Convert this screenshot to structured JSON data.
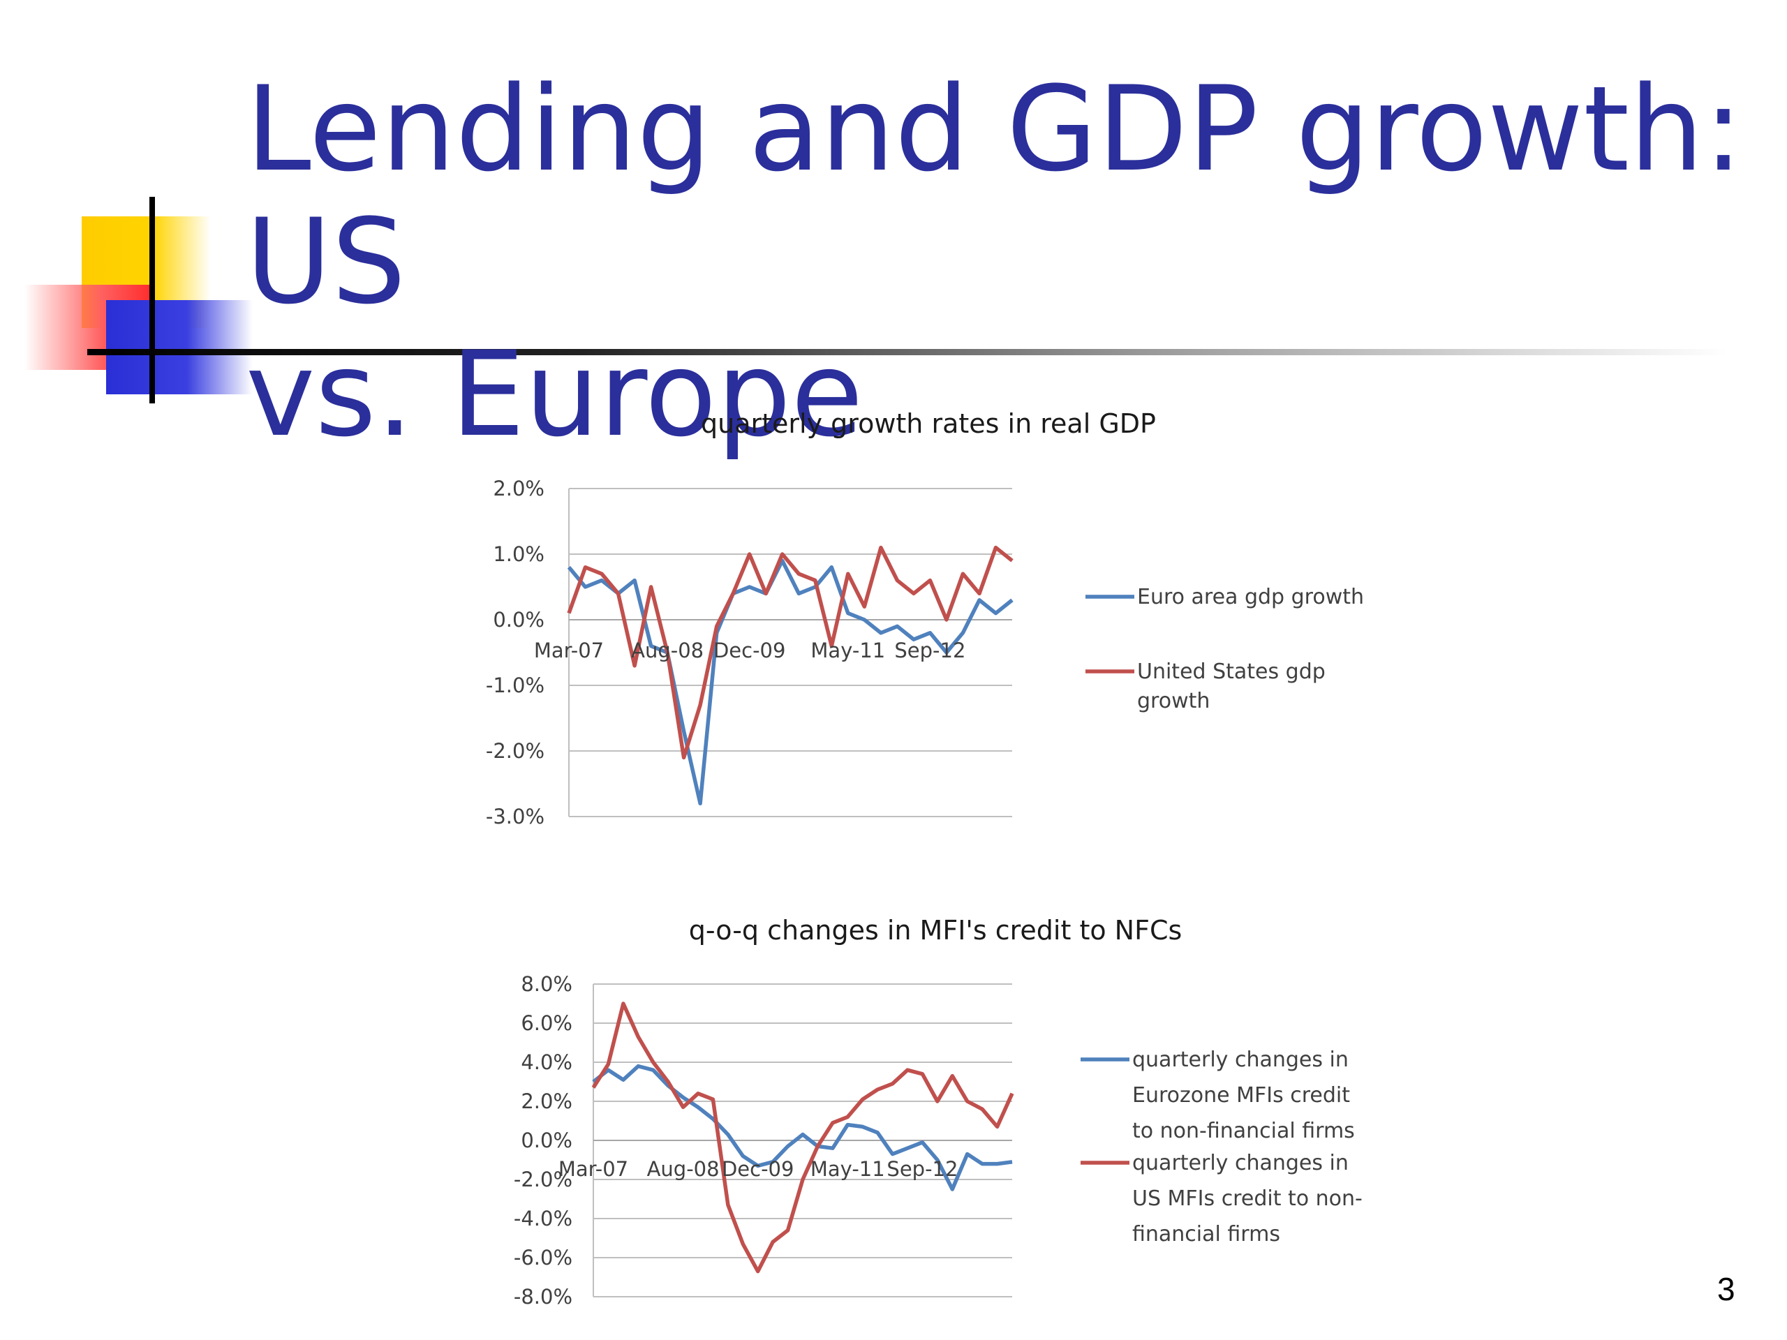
{
  "slide": {
    "title_line1": "Lending and GDP growth: US",
    "title_line2": "vs. Europe",
    "page_number": "3"
  },
  "chart_data": [
    {
      "type": "line",
      "title": "quarterly growth rates in real GDP",
      "ylim": [
        -3.0,
        2.0
      ],
      "yticks": [
        "2.0%",
        "1.0%",
        "0.0%",
        "-1.0%",
        "-2.0%",
        "-3.0%"
      ],
      "ytick_values": [
        2.0,
        1.0,
        0.0,
        -1.0,
        -2.0,
        -3.0
      ],
      "x_tick_labels": [
        "Mar-07",
        "Aug-08",
        "Dec-09",
        "May-11",
        "Sep-12"
      ],
      "x_tick_index": [
        0,
        6,
        11,
        17,
        22
      ],
      "grid": true,
      "legend_position": "right",
      "series": [
        {
          "name": "Euro area gdp growth",
          "color": "#4f81bd",
          "values": [
            0.8,
            0.5,
            0.6,
            0.4,
            0.6,
            -0.4,
            -0.5,
            -1.7,
            -2.8,
            -0.2,
            0.4,
            0.5,
            0.4,
            0.9,
            0.4,
            0.5,
            0.8,
            0.1,
            0.0,
            -0.2,
            -0.1,
            -0.3,
            -0.2,
            -0.5,
            -0.2,
            0.3,
            0.1,
            0.3
          ]
        },
        {
          "name": "United States gdp growth",
          "color": "#c0504d",
          "values": [
            0.1,
            0.8,
            0.7,
            0.4,
            -0.7,
            0.5,
            -0.5,
            -2.1,
            -1.3,
            -0.1,
            0.4,
            1.0,
            0.4,
            1.0,
            0.7,
            0.6,
            -0.4,
            0.7,
            0.2,
            1.1,
            0.6,
            0.4,
            0.6,
            0.0,
            0.7,
            0.4,
            1.1,
            0.9
          ]
        }
      ]
    },
    {
      "type": "line",
      "title": "q-o-q changes in MFI's credit to NFCs",
      "ylim": [
        -8.0,
        8.0
      ],
      "yticks": [
        "8.0%",
        "6.0%",
        "4.0%",
        "2.0%",
        "0.0%",
        "-2.0%",
        "-4.0%",
        "-6.0%",
        "-8.0%"
      ],
      "ytick_values": [
        8.0,
        6.0,
        4.0,
        2.0,
        0.0,
        -2.0,
        -4.0,
        -6.0,
        -8.0
      ],
      "x_tick_labels": [
        "Mar-07",
        "Aug-08",
        "Dec-09",
        "May-11",
        "Sep-12"
      ],
      "x_tick_index": [
        0,
        6,
        11,
        17,
        22
      ],
      "grid": true,
      "legend_position": "right",
      "series": [
        {
          "name": "quarterly changes in Eurozone MFIs credit to non-financial firms",
          "color": "#4f81bd",
          "values": [
            3.0,
            3.6,
            3.1,
            3.8,
            3.6,
            2.8,
            2.2,
            1.7,
            1.1,
            0.3,
            -0.8,
            -1.3,
            -1.1,
            -0.3,
            0.3,
            -0.3,
            -0.4,
            0.8,
            0.7,
            0.4,
            -0.7,
            -0.4,
            -0.1,
            -1.0,
            -2.5,
            -0.7,
            -1.2,
            -1.2,
            -1.1
          ]
        },
        {
          "name": "quarterly changes in US MFIs credit to non-financial firms",
          "color": "#c0504d",
          "values": [
            2.7,
            3.9,
            7.0,
            5.3,
            4.0,
            3.0,
            1.7,
            2.4,
            2.1,
            -3.3,
            -5.3,
            -6.7,
            -5.2,
            -4.6,
            -2.0,
            -0.3,
            0.9,
            1.2,
            2.1,
            2.6,
            2.9,
            3.6,
            3.4,
            2.0,
            3.3,
            2.0,
            1.6,
            0.7,
            2.4
          ]
        }
      ]
    }
  ]
}
